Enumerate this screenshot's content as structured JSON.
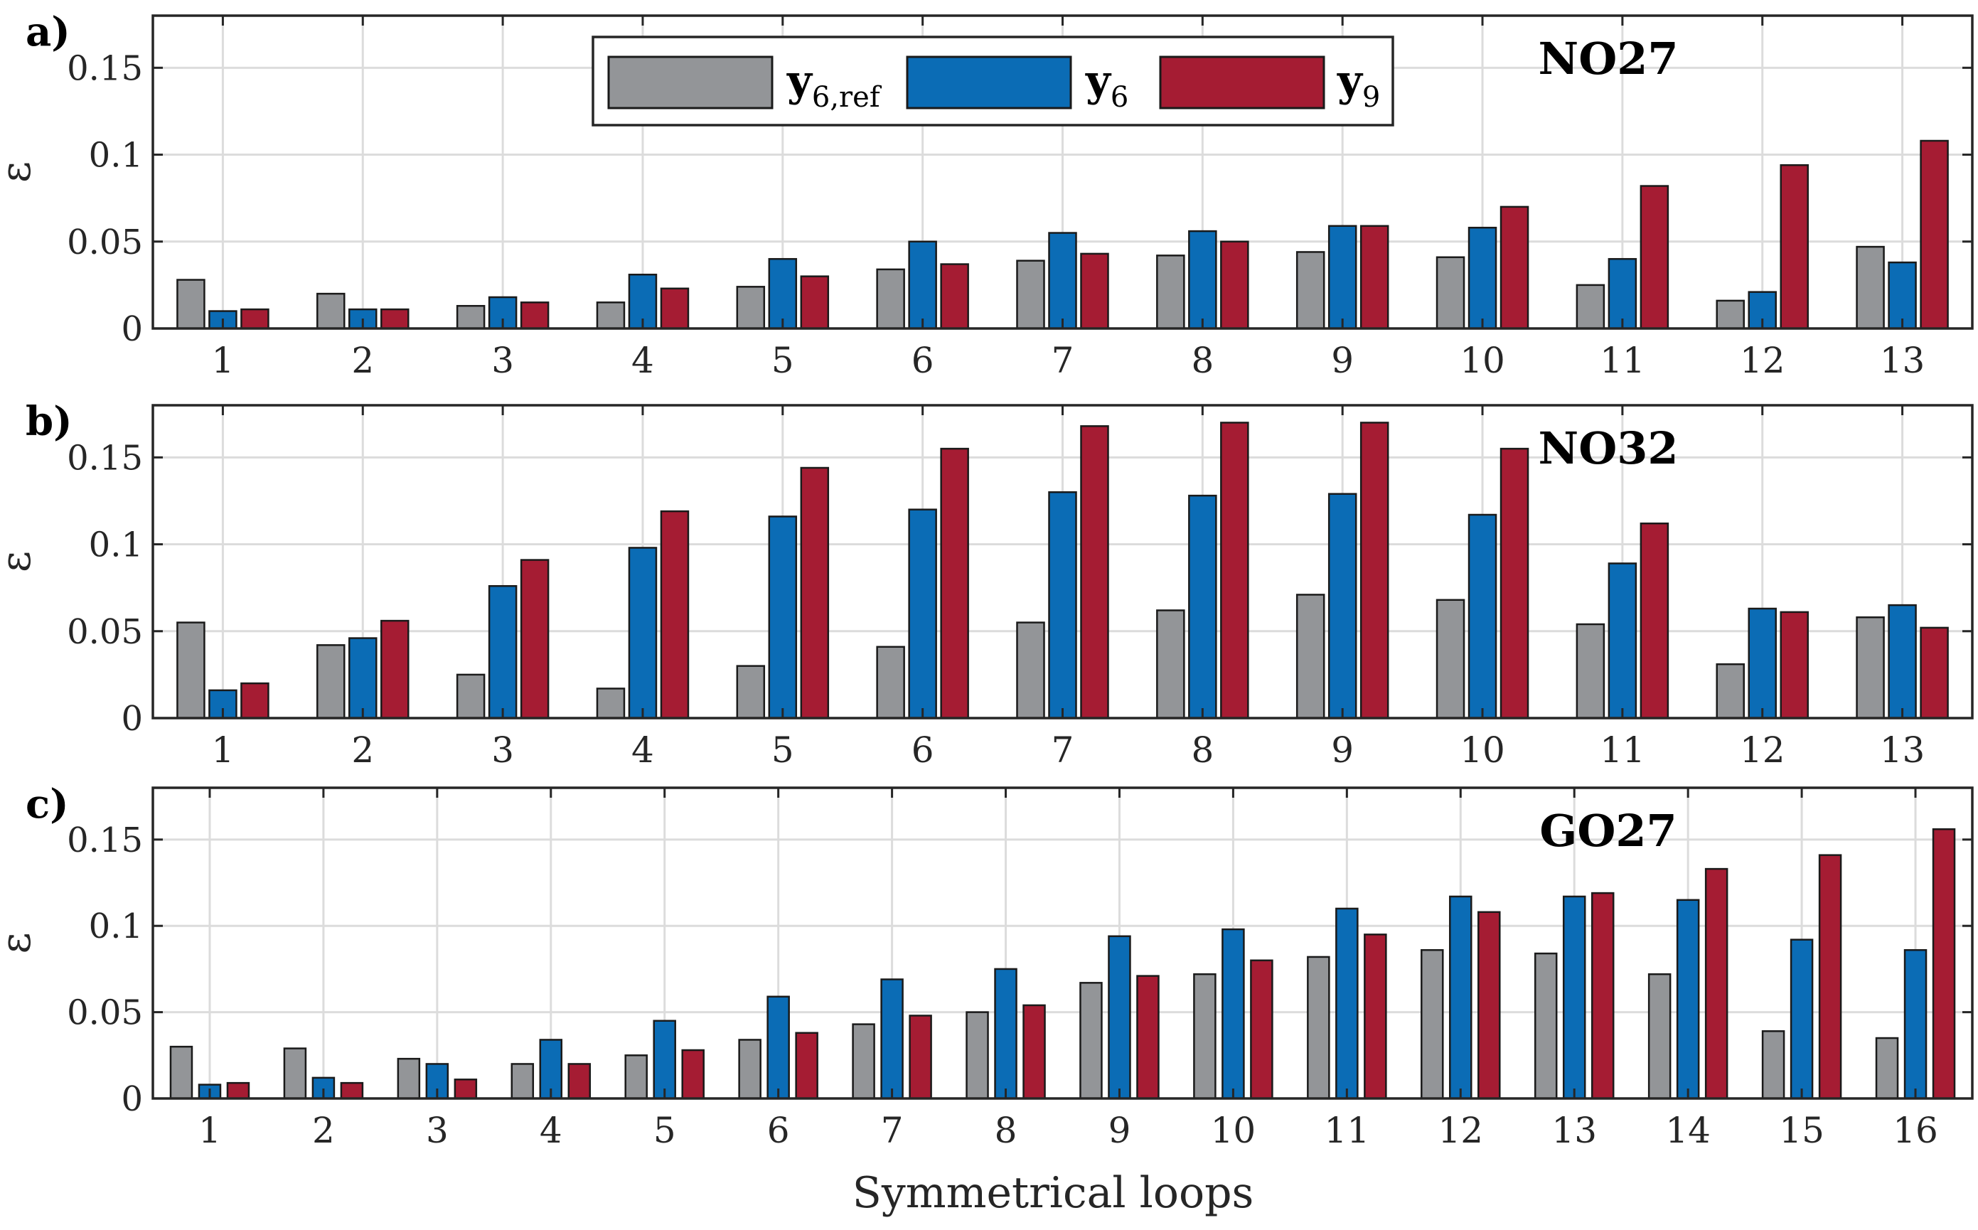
{
  "colors": {
    "y6ref": "#939598",
    "y6": "#0b6cb5",
    "y9": "#a51c33",
    "grid": "#dcdcdc",
    "axis": "#262626"
  },
  "legend": {
    "entries": [
      {
        "main": "y",
        "sub": "6,ref",
        "color_key": "y6ref"
      },
      {
        "main": "y",
        "sub": "6",
        "color_key": "y6"
      },
      {
        "main": "y",
        "sub": "9",
        "color_key": "y9"
      }
    ]
  },
  "xlabel": "Symmetrical loops",
  "chart_data": [
    {
      "type": "bar",
      "panel": "a)",
      "title": "NO27",
      "ylabel": "ε",
      "ylim": [
        0,
        0.18
      ],
      "yticks": [
        0,
        0.05,
        0.1,
        0.15
      ],
      "ytick_labels": [
        "0",
        "0.05",
        "0.1",
        "0.15"
      ],
      "categories": [
        "1",
        "2",
        "3",
        "4",
        "5",
        "6",
        "7",
        "8",
        "9",
        "10",
        "11",
        "12",
        "13"
      ],
      "series": [
        {
          "name": "y6,ref",
          "values": [
            0.028,
            0.02,
            0.013,
            0.015,
            0.024,
            0.034,
            0.039,
            0.042,
            0.044,
            0.041,
            0.025,
            0.016,
            0.047
          ]
        },
        {
          "name": "y6",
          "values": [
            0.01,
            0.011,
            0.018,
            0.031,
            0.04,
            0.05,
            0.055,
            0.056,
            0.059,
            0.058,
            0.04,
            0.021,
            0.038
          ]
        },
        {
          "name": "y9",
          "values": [
            0.011,
            0.011,
            0.015,
            0.023,
            0.03,
            0.037,
            0.043,
            0.05,
            0.059,
            0.07,
            0.082,
            0.094,
            0.108
          ]
        }
      ]
    },
    {
      "type": "bar",
      "panel": "b)",
      "title": "NO32",
      "ylabel": "ε",
      "ylim": [
        0,
        0.18
      ],
      "yticks": [
        0,
        0.05,
        0.1,
        0.15
      ],
      "ytick_labels": [
        "0",
        "0.05",
        "0.1",
        "0.15"
      ],
      "categories": [
        "1",
        "2",
        "3",
        "4",
        "5",
        "6",
        "7",
        "8",
        "9",
        "10",
        "11",
        "12",
        "13"
      ],
      "series": [
        {
          "name": "y6,ref",
          "values": [
            0.055,
            0.042,
            0.025,
            0.017,
            0.03,
            0.041,
            0.055,
            0.062,
            0.071,
            0.068,
            0.054,
            0.031,
            0.058
          ]
        },
        {
          "name": "y6",
          "values": [
            0.016,
            0.046,
            0.076,
            0.098,
            0.116,
            0.12,
            0.13,
            0.128,
            0.129,
            0.117,
            0.089,
            0.063,
            0.065
          ]
        },
        {
          "name": "y9",
          "values": [
            0.02,
            0.056,
            0.091,
            0.119,
            0.144,
            0.155,
            0.168,
            0.17,
            0.17,
            0.155,
            0.112,
            0.061,
            0.052
          ]
        }
      ]
    },
    {
      "type": "bar",
      "panel": "c)",
      "title": "GO27",
      "ylabel": "ε",
      "ylim": [
        0,
        0.18
      ],
      "yticks": [
        0,
        0.05,
        0.1,
        0.15
      ],
      "ytick_labels": [
        "0",
        "0.05",
        "0.1",
        "0.15"
      ],
      "categories": [
        "1",
        "2",
        "3",
        "4",
        "5",
        "6",
        "7",
        "8",
        "9",
        "10",
        "11",
        "12",
        "13",
        "14",
        "15",
        "16"
      ],
      "series": [
        {
          "name": "y6,ref",
          "values": [
            0.03,
            0.029,
            0.023,
            0.02,
            0.025,
            0.034,
            0.043,
            0.05,
            0.067,
            0.072,
            0.082,
            0.086,
            0.084,
            0.072,
            0.039,
            0.035
          ]
        },
        {
          "name": "y6",
          "values": [
            0.008,
            0.012,
            0.02,
            0.034,
            0.045,
            0.059,
            0.069,
            0.075,
            0.094,
            0.098,
            0.11,
            0.117,
            0.117,
            0.115,
            0.092,
            0.086
          ]
        },
        {
          "name": "y9",
          "values": [
            0.009,
            0.009,
            0.011,
            0.02,
            0.028,
            0.038,
            0.048,
            0.054,
            0.071,
            0.08,
            0.095,
            0.108,
            0.119,
            0.133,
            0.141,
            0.156
          ]
        }
      ]
    }
  ]
}
